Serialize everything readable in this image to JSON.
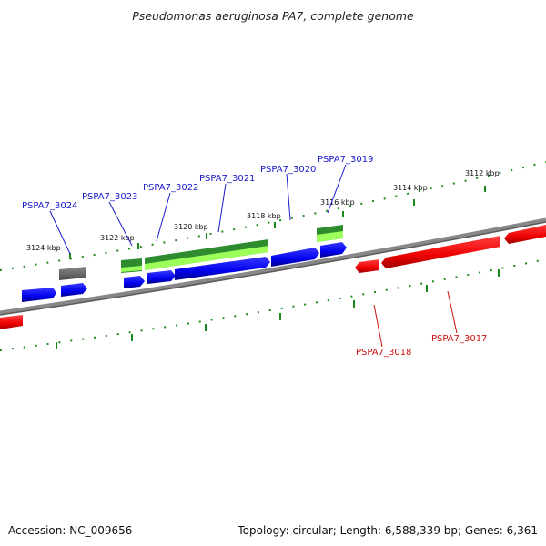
{
  "title": "Pseudomonas aeruginosa PA7, complete genome",
  "footer": {
    "accession": "Accession: NC_009656",
    "summary": "Topology: circular; Length: 6,588,339 bp; Genes: 6,361"
  },
  "tick_labels": [
    "3124 kbp",
    "3122 kbp",
    "3120 kbp",
    "3118 kbp",
    "3116 kbp",
    "3114 kbp",
    "3112 kbp"
  ],
  "genes_forward": [
    "PSPA7_3024",
    "PSPA7_3023",
    "PSPA7_3022",
    "PSPA7_3021",
    "PSPA7_3020",
    "PSPA7_3019"
  ],
  "genes_reverse": [
    "PSPA7_3018",
    "PSPA7_3017"
  ],
  "colors": {
    "forward_gene": "#0000ee",
    "reverse_gene": "#ee0000",
    "forward_label": "#1a1acc",
    "reverse_label": "#cc1111",
    "backbone": "#808080",
    "tick": "#1a8a1a",
    "feature_dark": "#2e8b2e",
    "feature_light": "#9cff5a",
    "pseudo_gene": "#6e6e6e"
  }
}
